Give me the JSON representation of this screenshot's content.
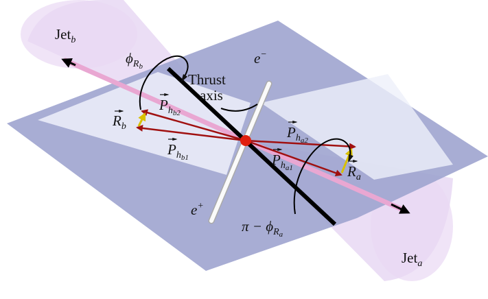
{
  "labels": {
    "jet_b": {
      "main": "Jet",
      "sub": "b"
    },
    "jet_a": {
      "main": "Jet",
      "sub": "a"
    },
    "phi_r_b": {
      "main": "ϕ",
      "sub": "R",
      "subsub": "b"
    },
    "thrust_axis": {
      "line1": "Thrust",
      "line2": "axis"
    },
    "e_minus": {
      "main": "e",
      "sup": "−"
    },
    "e_plus": {
      "main": "e",
      "sup": "+"
    },
    "p_hb2": {
      "main": "P",
      "sub": "h",
      "subsub": "b2"
    },
    "p_hb1": {
      "main": "P",
      "sub": "h",
      "subsub": "b1"
    },
    "r_b": {
      "main": "R",
      "sub": "b"
    },
    "p_ha2": {
      "main": "P",
      "sub": "h",
      "subsub": "a2"
    },
    "p_ha1": {
      "main": "P",
      "sub": "h",
      "subsub": "a1"
    },
    "r_a": {
      "main": "R",
      "sub": "a"
    },
    "pi_minus_phi_r_a": {
      "main": "π − ϕ",
      "sub": "R",
      "subsub": "a"
    }
  }
}
